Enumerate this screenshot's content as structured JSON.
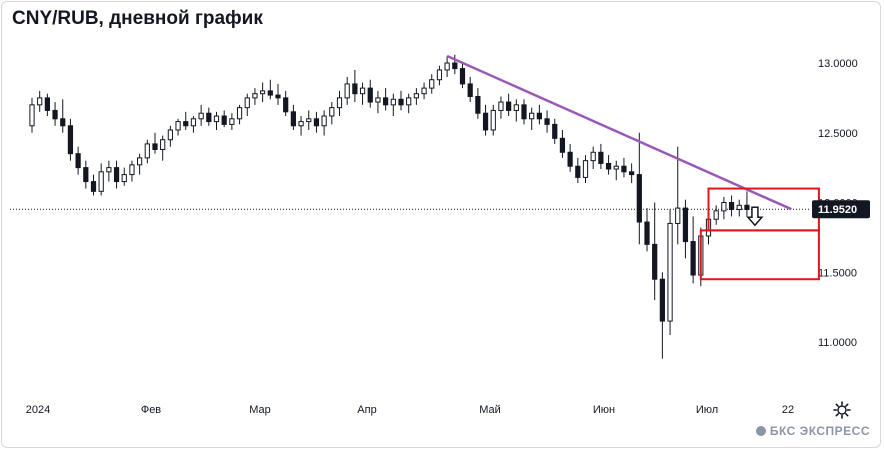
{
  "title": "CNY/RUB, дневной график",
  "brand": "БКС ЭКСПРЕСС",
  "icons": {
    "settings": "gear-icon",
    "brand": "bcs-logo-icon"
  },
  "colors": {
    "candle": "#131722",
    "trendline": "#9b59b6",
    "box": "#e0151b",
    "price_label_bg": "#131722"
  },
  "chart_data": {
    "type": "candlestick",
    "title": "CNY/RUB, дневной график",
    "ylim": [
      10.8,
      13.15
    ],
    "y_ticks": [
      "13.0000",
      "12.5000",
      "12.0000",
      "11.5000",
      "11.0000"
    ],
    "y_tick_values": [
      13.0,
      12.5,
      12.0,
      11.5,
      11.0
    ],
    "x_ticks": [
      "2024",
      "Фев",
      "Мар",
      "Апр",
      "Май",
      "Июн",
      "Июл",
      "22"
    ],
    "last_price": 11.952,
    "last_price_label": "11.9520",
    "grid": false,
    "candles": [
      [
        12.55,
        12.75,
        12.5,
        12.7
      ],
      [
        12.7,
        12.8,
        12.65,
        12.75
      ],
      [
        12.75,
        12.78,
        12.62,
        12.66
      ],
      [
        12.66,
        12.72,
        12.55,
        12.6
      ],
      [
        12.6,
        12.74,
        12.5,
        12.55
      ],
      [
        12.55,
        12.6,
        12.3,
        12.35
      ],
      [
        12.35,
        12.4,
        12.2,
        12.25
      ],
      [
        12.25,
        12.3,
        12.1,
        12.15
      ],
      [
        12.15,
        12.2,
        12.05,
        12.08
      ],
      [
        12.08,
        12.28,
        12.05,
        12.22
      ],
      [
        12.22,
        12.3,
        12.15,
        12.25
      ],
      [
        12.25,
        12.3,
        12.1,
        12.15
      ],
      [
        12.15,
        12.25,
        12.12,
        12.2
      ],
      [
        12.2,
        12.3,
        12.15,
        12.27
      ],
      [
        12.27,
        12.35,
        12.2,
        12.32
      ],
      [
        12.32,
        12.45,
        12.28,
        12.42
      ],
      [
        12.42,
        12.5,
        12.35,
        12.38
      ],
      [
        12.38,
        12.48,
        12.3,
        12.45
      ],
      [
        12.45,
        12.55,
        12.4,
        12.52
      ],
      [
        12.52,
        12.6,
        12.48,
        12.58
      ],
      [
        12.58,
        12.65,
        12.52,
        12.55
      ],
      [
        12.55,
        12.62,
        12.5,
        12.6
      ],
      [
        12.6,
        12.7,
        12.55,
        12.64
      ],
      [
        12.64,
        12.68,
        12.55,
        12.58
      ],
      [
        12.58,
        12.65,
        12.52,
        12.62
      ],
      [
        12.62,
        12.66,
        12.54,
        12.56
      ],
      [
        12.56,
        12.64,
        12.52,
        12.6
      ],
      [
        12.6,
        12.7,
        12.56,
        12.68
      ],
      [
        12.68,
        12.78,
        12.62,
        12.75
      ],
      [
        12.75,
        12.82,
        12.7,
        12.78
      ],
      [
        12.78,
        12.86,
        12.72,
        12.8
      ],
      [
        12.8,
        12.88,
        12.74,
        12.77
      ],
      [
        12.77,
        12.85,
        12.7,
        12.75
      ],
      [
        12.75,
        12.8,
        12.62,
        12.65
      ],
      [
        12.65,
        12.7,
        12.52,
        12.55
      ],
      [
        12.55,
        12.62,
        12.48,
        12.58
      ],
      [
        12.58,
        12.66,
        12.52,
        12.6
      ],
      [
        12.6,
        12.65,
        12.5,
        12.55
      ],
      [
        12.55,
        12.66,
        12.48,
        12.62
      ],
      [
        12.62,
        12.72,
        12.56,
        12.68
      ],
      [
        12.68,
        12.8,
        12.62,
        12.75
      ],
      [
        12.75,
        12.9,
        12.7,
        12.85
      ],
      [
        12.85,
        12.95,
        12.72,
        12.78
      ],
      [
        12.78,
        12.86,
        12.7,
        12.82
      ],
      [
        12.82,
        12.88,
        12.68,
        12.72
      ],
      [
        12.72,
        12.8,
        12.64,
        12.75
      ],
      [
        12.75,
        12.82,
        12.66,
        12.7
      ],
      [
        12.7,
        12.78,
        12.62,
        12.74
      ],
      [
        12.74,
        12.8,
        12.66,
        12.7
      ],
      [
        12.7,
        12.78,
        12.64,
        12.75
      ],
      [
        12.75,
        12.82,
        12.7,
        12.78
      ],
      [
        12.78,
        12.86,
        12.74,
        12.82
      ],
      [
        12.82,
        12.92,
        12.78,
        12.88
      ],
      [
        12.88,
        12.98,
        12.84,
        12.95
      ],
      [
        12.95,
        13.05,
        12.9,
        13.0
      ],
      [
        13.0,
        13.06,
        12.92,
        12.96
      ],
      [
        12.96,
        13.0,
        12.82,
        12.85
      ],
      [
        12.85,
        12.9,
        12.72,
        12.76
      ],
      [
        12.76,
        12.82,
        12.6,
        12.64
      ],
      [
        12.64,
        12.7,
        12.48,
        12.52
      ],
      [
        12.52,
        12.7,
        12.48,
        12.66
      ],
      [
        12.66,
        12.76,
        12.6,
        12.72
      ],
      [
        12.72,
        12.78,
        12.62,
        12.66
      ],
      [
        12.66,
        12.74,
        12.58,
        12.7
      ],
      [
        12.7,
        12.74,
        12.56,
        12.6
      ],
      [
        12.6,
        12.68,
        12.52,
        12.64
      ],
      [
        12.64,
        12.7,
        12.56,
        12.6
      ],
      [
        12.6,
        12.66,
        12.5,
        12.56
      ],
      [
        12.56,
        12.6,
        12.42,
        12.46
      ],
      [
        12.46,
        12.52,
        12.32,
        12.36
      ],
      [
        12.36,
        12.42,
        12.22,
        12.26
      ],
      [
        12.26,
        12.32,
        12.14,
        12.18
      ],
      [
        12.18,
        12.34,
        12.14,
        12.3
      ],
      [
        12.3,
        12.4,
        12.24,
        12.36
      ],
      [
        12.36,
        12.42,
        12.24,
        12.28
      ],
      [
        12.28,
        12.34,
        12.2,
        12.24
      ],
      [
        12.24,
        12.3,
        12.16,
        12.26
      ],
      [
        12.26,
        12.32,
        12.18,
        12.22
      ],
      [
        12.22,
        12.28,
        12.14,
        12.2
      ],
      [
        12.2,
        12.5,
        11.7,
        11.86
      ],
      [
        11.86,
        11.96,
        11.65,
        11.7
      ],
      [
        11.7,
        12.0,
        11.3,
        11.45
      ],
      [
        11.45,
        11.5,
        10.88,
        11.15
      ],
      [
        11.15,
        11.95,
        11.05,
        11.85
      ],
      [
        11.85,
        12.4,
        11.7,
        11.96
      ],
      [
        11.96,
        12.02,
        11.6,
        11.72
      ],
      [
        11.72,
        11.9,
        11.42,
        11.48
      ],
      [
        11.48,
        11.82,
        11.4,
        11.76
      ],
      [
        11.76,
        11.92,
        11.7,
        11.88
      ],
      [
        11.88,
        11.98,
        11.84,
        11.94
      ],
      [
        11.94,
        12.04,
        11.88,
        12.0
      ],
      [
        12.0,
        12.05,
        11.9,
        11.95
      ],
      [
        11.95,
        12.02,
        11.9,
        11.98
      ],
      [
        11.98,
        12.08,
        11.9,
        11.95
      ]
    ],
    "trendline": {
      "from": {
        "index": 54,
        "value": 13.05
      },
      "to": {
        "index": 98,
        "value": 11.952
      }
    },
    "boxes": [
      {
        "top": 12.1,
        "bottom": 11.8,
        "from_index": 88,
        "to_index": 99.5
      },
      {
        "top": 11.8,
        "bottom": 11.45,
        "from_index": 87,
        "to_index": 99.5
      }
    ]
  }
}
